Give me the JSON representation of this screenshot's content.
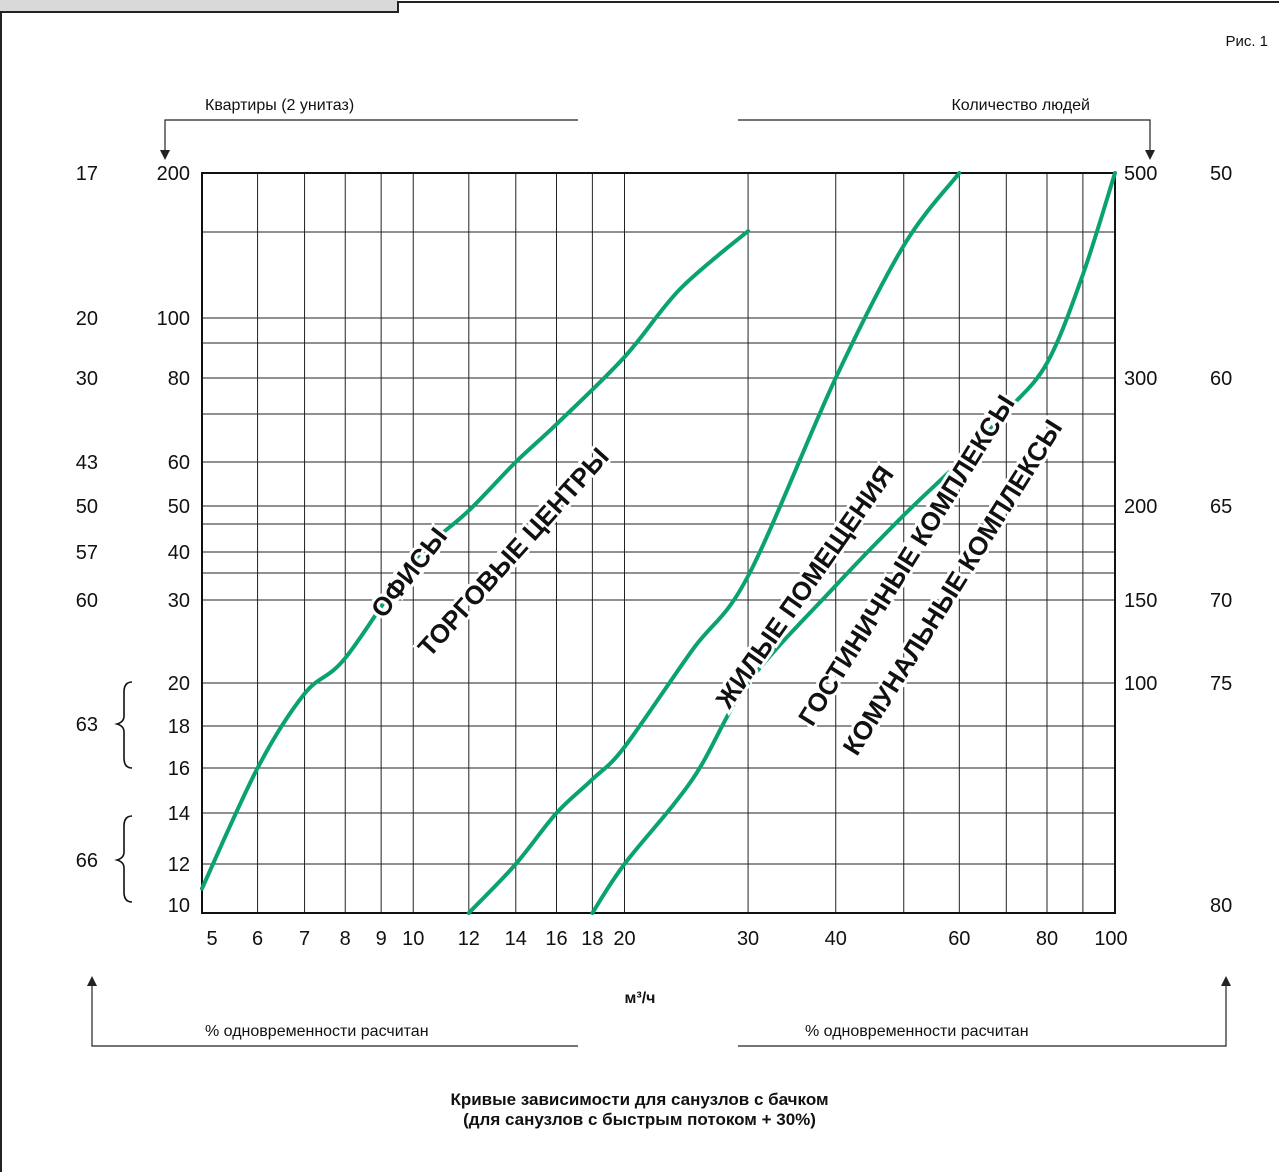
{
  "figure_label": "Рис. 1",
  "captions": {
    "line1": "Кривые зависимости для санузлов с бачком",
    "line2": "(для санузлов с быстрым потоком + 30%)"
  },
  "colors": {
    "curve": "#0aa36e",
    "grid": "#222222"
  },
  "chart_data": {
    "type": "line",
    "title": "",
    "xlabel": "м³/ч",
    "x_scale": "log",
    "xlim": [
      5,
      100
    ],
    "x_ticks": [
      "5",
      "6",
      "7",
      "8",
      "9",
      "10",
      "12",
      "14",
      "16",
      "18",
      "20",
      "30",
      "40",
      "60",
      "80",
      "100"
    ],
    "left_axis_title": "Квартиры (2 унитаз)",
    "right_axis_title": "Количество людей",
    "bottom_left_label": "% одновременности расчитан",
    "bottom_right_label": "% одновременности расчитан",
    "left_inner_ticks": [
      "200",
      "100",
      "80",
      "60",
      "50",
      "40",
      "30",
      "20",
      "18",
      "16",
      "14",
      "12",
      "10"
    ],
    "left_outer_ticks": [
      "17",
      "20",
      "30",
      "43",
      "50",
      "57",
      "60",
      "63",
      "66"
    ],
    "right_inner_ticks": [
      "500",
      "300",
      "200",
      "150",
      "100"
    ],
    "right_outer_ticks": [
      "50",
      "60",
      "65",
      "70",
      "75",
      "80"
    ],
    "series": [
      {
        "name": "ОФИСЫ / ТОРГОВЫЕ ЦЕНТРЫ",
        "label1": "ОФИСЫ",
        "label2": "ТОРГОВЫЕ ЦЕНТРЫ",
        "x": [
          5,
          6,
          7,
          8,
          10,
          12,
          14,
          16,
          20,
          24,
          30
        ],
        "y": [
          11,
          16,
          19.5,
          23,
          38,
          49,
          60,
          69,
          87,
          120,
          160
        ]
      },
      {
        "name": "ЖИЛЫЕ ПОМЕЩЕНИЯ",
        "label1": "ЖИЛЫЕ ПОМЕЩЕНИЯ",
        "x": [
          12,
          14,
          16,
          18,
          20,
          25,
          30,
          40,
          50,
          60
        ],
        "y": [
          10,
          12,
          14,
          15.5,
          17,
          24,
          35,
          80,
          150,
          200
        ]
      },
      {
        "name": "ГОСТИНИЧНЫЕ КОМПЛЕКСЫ / КОМУНАЛЬНЫЕ КОМПЛЕКСЫ",
        "label1": "ГОСТИНИЧНЫЕ КОМПЛЕКСЫ",
        "label2": "КОМУНАЛЬНЫЕ КОМПЛЕКСЫ",
        "x": [
          18,
          20,
          25,
          30,
          40,
          50,
          60,
          70,
          80,
          90,
          100
        ],
        "y": [
          10,
          12,
          15.5,
          20,
          33,
          48,
          60,
          72,
          85,
          130,
          200
        ]
      }
    ]
  }
}
